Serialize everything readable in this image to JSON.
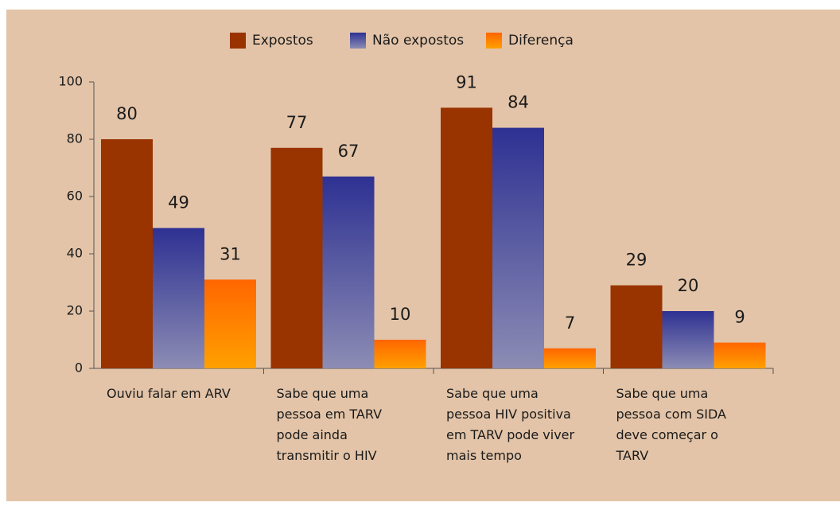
{
  "chart_data": {
    "type": "bar",
    "categories": [
      [
        "Ouviu falar em ARV"
      ],
      [
        "Sabe que uma",
        "pessoa em TARV",
        "pode ainda",
        "transmitir o HIV"
      ],
      [
        "Sabe que uma",
        "pessoa HIV positiva",
        "em TARV pode viver",
        "mais tempo"
      ],
      [
        "Sabe que uma",
        "pessoa com SIDA",
        "deve começar o",
        "TARV"
      ]
    ],
    "series": [
      {
        "name": "Expostos",
        "color": "#993300",
        "values": [
          80,
          77,
          91,
          29
        ]
      },
      {
        "name": "Não expostos",
        "color": "#2e3192",
        "values": [
          49,
          67,
          84,
          20
        ]
      },
      {
        "name": "Diferença",
        "color": "#ff6600",
        "values": [
          31,
          10,
          7,
          9
        ]
      }
    ],
    "ylim": [
      0,
      100
    ],
    "yticks": [
      0,
      20,
      40,
      60,
      80,
      100
    ],
    "legend": "top"
  }
}
